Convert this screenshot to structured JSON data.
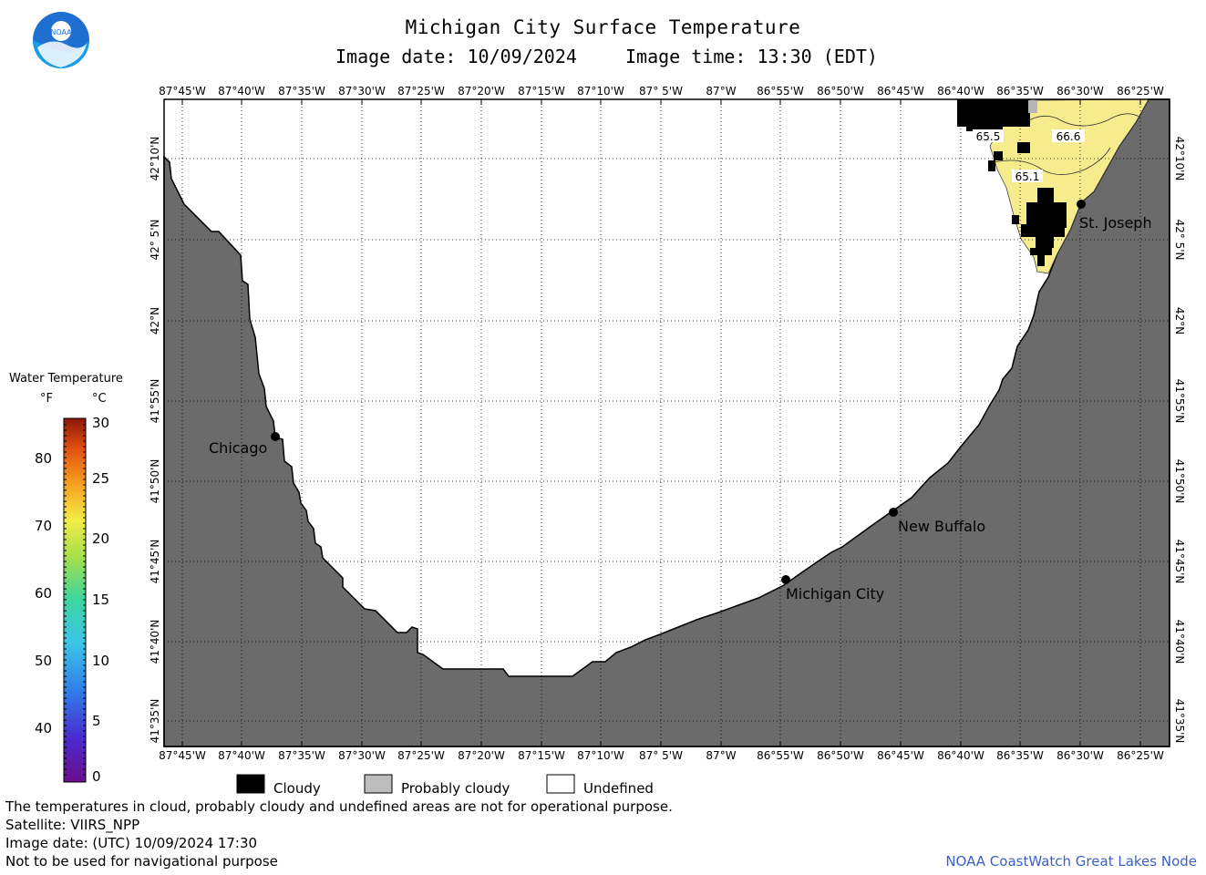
{
  "header": {
    "title": "Michigan City Surface Temperature",
    "date_line": "Image date: 10/09/2024",
    "time_line": "Image time: 13:30 (EDT)"
  },
  "logo": {
    "text": "NOAA",
    "icon": "noaa-logo"
  },
  "map": {
    "lon_labels": [
      "87°45'W",
      "87°40'W",
      "87°35'W",
      "87°30'W",
      "87°25'W",
      "87°20'W",
      "87°15'W",
      "87°10'W",
      "87° 5'W",
      "87°W",
      "86°55'W",
      "86°50'W",
      "86°45'W",
      "86°40'W",
      "86°35'W",
      "86°30'W",
      "86°25'W"
    ],
    "lat_labels": [
      "42°10'N",
      "42° 5'N",
      "42°N",
      "41°55'N",
      "41°50'N",
      "41°45'N",
      "41°40'N",
      "41°35'N"
    ],
    "places": {
      "chicago": "Chicago",
      "new_buffalo": "New Buffalo",
      "michigan_city": "Michigan City",
      "st_joseph": "St. Joseph"
    },
    "isotherms": [
      "65.5",
      "66.6",
      "65.1"
    ],
    "colors": {
      "land": "#6b6b6b",
      "undefined": "#ffffff",
      "warm_water": "#f6ec8e",
      "cloud": "#000000"
    }
  },
  "color_scale": {
    "title": "Water Temperature",
    "unit_f": "°F",
    "unit_c": "°C",
    "f_ticks": [
      "80",
      "70",
      "60",
      "50",
      "40"
    ],
    "c_ticks": [
      "30",
      "25",
      "20",
      "15",
      "10",
      "5",
      "0"
    ]
  },
  "status_legend": {
    "cloudy": "Cloudy",
    "probably_cloudy": "Probably cloudy",
    "undefined": "Undefined"
  },
  "footer": {
    "note1": "The temperatures in cloud, probably cloudy and undefined areas are not for operational purpose.",
    "satellite": "Satellite: VIIRS_NPP",
    "utc_date": "Image date: (UTC) 10/09/2024  17:30",
    "nav_warning": "Not to be used for navigational purpose",
    "credit": "NOAA CoastWatch Great Lakes Node"
  }
}
